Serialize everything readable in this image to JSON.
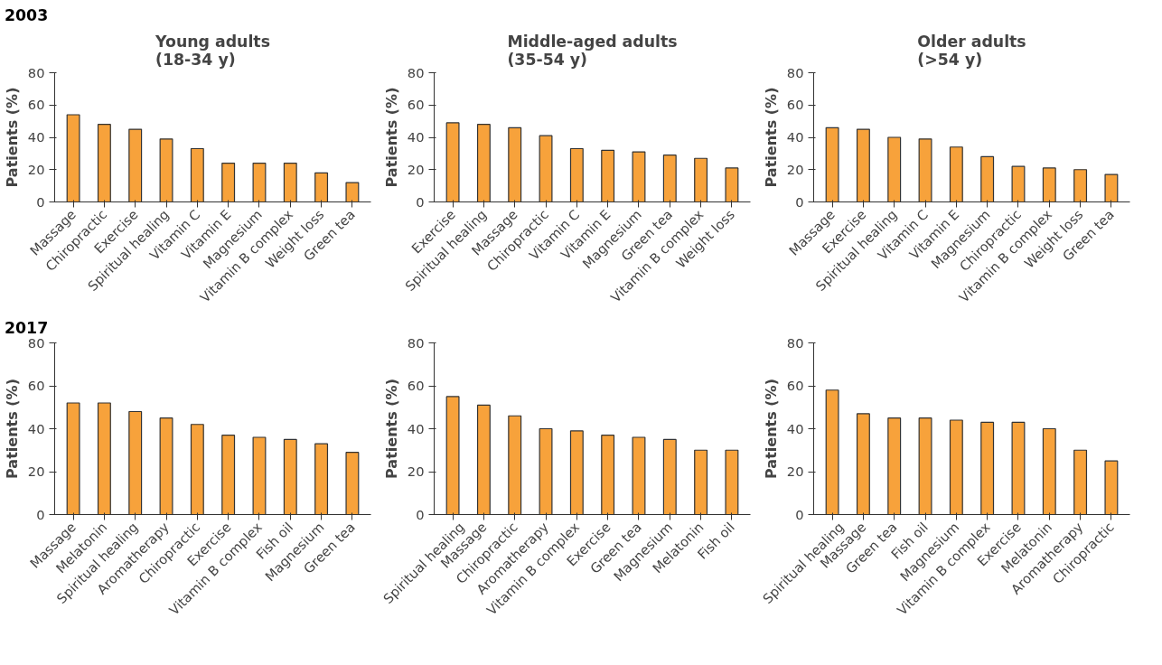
{
  "chart_data": [
    {
      "type": "bar",
      "annotations": [
        "2003"
      ],
      "title": "Young adults\n(18-34 y)",
      "ylabel": "Patients (%)",
      "categories": [
        "Massage",
        "Chiropractic",
        "Exercise",
        "Spiritual healing",
        "Vitamin C",
        "Vitamin E",
        "Magnesium",
        "Vitamin B complex",
        "Weight loss",
        "Green tea"
      ],
      "values": [
        54,
        48,
        45,
        39,
        33,
        24,
        24,
        24,
        18,
        12
      ],
      "color": "#f7a23b",
      "ylim": [
        0,
        80
      ],
      "yticks": [
        0,
        20,
        40,
        60,
        80
      ]
    },
    {
      "type": "bar",
      "title": "Middle-aged adults\n(35-54 y)",
      "ylabel": "Patients (%)",
      "categories": [
        "Exercise",
        "Spiritual healing",
        "Massage",
        "Chiropractic",
        "Vitamin C",
        "Vitamin E",
        "Magnesium",
        "Green tea",
        "Vitamin B complex",
        "Weight loss"
      ],
      "values": [
        49,
        48,
        46,
        41,
        33,
        32,
        31,
        29,
        27,
        21
      ],
      "color": "#f7a23b",
      "ylim": [
        0,
        80
      ],
      "yticks": [
        0,
        20,
        40,
        60,
        80
      ]
    },
    {
      "type": "bar",
      "title": "Older adults\n(>54 y)",
      "ylabel": "Patients (%)",
      "categories": [
        "Massage",
        "Exercise",
        "Spiritual healing",
        "Vitamin C",
        "Vitamin E",
        "Magnesium",
        "Chiropractic",
        "Vitamin B complex",
        "Weight loss",
        "Green tea"
      ],
      "values": [
        46,
        45,
        40,
        39,
        34,
        28,
        22,
        21,
        20,
        17
      ],
      "color": "#f7a23b",
      "ylim": [
        0,
        80
      ],
      "yticks": [
        0,
        20,
        40,
        60,
        80
      ]
    },
    {
      "type": "bar",
      "annotations": [
        "2017"
      ],
      "ylabel": "Patients (%)",
      "categories": [
        "Massage",
        "Melatonin",
        "Spiritual healing",
        "Aromatherapy",
        "Chiropractic",
        "Exercise",
        "Vitamin B complex",
        "Fish oil",
        "Magnesium",
        "Green tea"
      ],
      "values": [
        52,
        52,
        48,
        45,
        42,
        37,
        36,
        35,
        33,
        29
      ],
      "color": "#f7a23b",
      "ylim": [
        0,
        80
      ],
      "yticks": [
        0,
        20,
        40,
        60,
        80
      ]
    },
    {
      "type": "bar",
      "ylabel": "Patients (%)",
      "categories": [
        "Spiritual healing",
        "Massage",
        "Chiropractic",
        "Aromatherapy",
        "Vitamin B complex",
        "Exercise",
        "Green tea",
        "Magnesium",
        "Melatonin",
        "Fish oil"
      ],
      "values": [
        55,
        51,
        46,
        40,
        39,
        37,
        36,
        35,
        30,
        30
      ],
      "color": "#f7a23b",
      "ylim": [
        0,
        80
      ],
      "yticks": [
        0,
        20,
        40,
        60,
        80
      ]
    },
    {
      "type": "bar",
      "ylabel": "Patients (%)",
      "categories": [
        "Spiritual healing",
        "Massage",
        "Green tea",
        "Fish oil",
        "Magnesium",
        "Vitamin B complex",
        "Exercise",
        "Melatonin",
        "Aromatherapy",
        "Chiropractic"
      ],
      "values": [
        58,
        47,
        45,
        45,
        44,
        43,
        43,
        40,
        30,
        25
      ],
      "color": "#f7a23b",
      "ylim": [
        0,
        80
      ],
      "yticks": [
        0,
        20,
        40,
        60,
        80
      ]
    }
  ]
}
